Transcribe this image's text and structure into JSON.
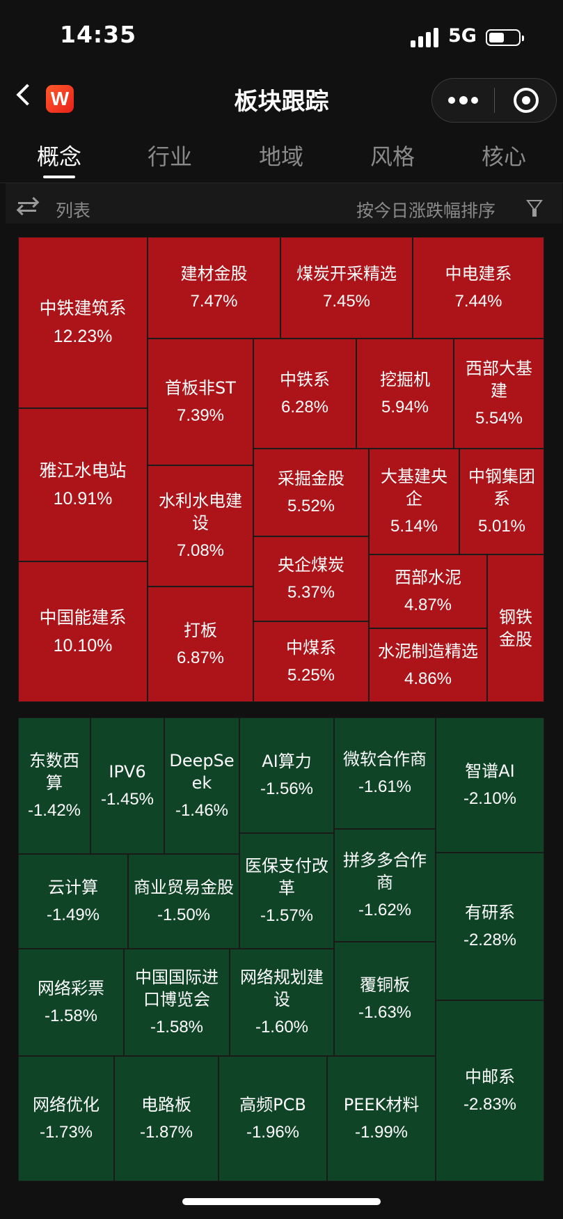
{
  "status_bar": {
    "time": "14:35",
    "network": "5G",
    "battery_level": 0.5
  },
  "header": {
    "title": "板块跟踪",
    "logo_letter": "W"
  },
  "tabs": [
    "概念",
    "行业",
    "地域",
    "风格",
    "核心"
  ],
  "active_tab_index": 0,
  "list_bar": {
    "list_label": "列表",
    "sort_label": "按今日涨跌幅排序"
  },
  "colors": {
    "up": "#ad1419",
    "down": "#0f4427",
    "background": "#111111"
  },
  "treemap_up": [
    {
      "name": "中铁建筑系",
      "change": "12.23%"
    },
    {
      "name": "建材金股",
      "change": "7.47%"
    },
    {
      "name": "煤炭开采精选",
      "change": "7.45%"
    },
    {
      "name": "中电建系",
      "change": "7.44%"
    },
    {
      "name": "首板非ST",
      "change": "7.39%"
    },
    {
      "name": "中铁系",
      "change": "6.28%"
    },
    {
      "name": "挖掘机",
      "change": "5.94%"
    },
    {
      "name": "西部大基建",
      "change": "5.54%"
    },
    {
      "name": "雅江水电站",
      "change": "10.91%"
    },
    {
      "name": "水利水电建设",
      "change": "7.08%"
    },
    {
      "name": "采掘金股",
      "change": "5.52%"
    },
    {
      "name": "大基建央企",
      "change": "5.14%"
    },
    {
      "name": "中钢集团系",
      "change": "5.01%"
    },
    {
      "name": "央企煤炭",
      "change": "5.37%"
    },
    {
      "name": "西部水泥",
      "change": "4.87%"
    },
    {
      "name": "钢铁金股",
      "change": ""
    },
    {
      "name": "中国能建系",
      "change": "10.10%"
    },
    {
      "name": "打板",
      "change": "6.87%"
    },
    {
      "name": "中煤系",
      "change": "5.25%"
    },
    {
      "name": "水泥制造精选",
      "change": "4.86%"
    }
  ],
  "treemap_down": [
    {
      "name": "东数西算",
      "change": "-1.42%"
    },
    {
      "name": "IPV6",
      "change": "-1.45%"
    },
    {
      "name": "DeepSeek",
      "change": "-1.46%"
    },
    {
      "name": "AI算力",
      "change": "-1.56%"
    },
    {
      "name": "微软合作商",
      "change": "-1.61%"
    },
    {
      "name": "智谱AI",
      "change": "-2.10%"
    },
    {
      "name": "云计算",
      "change": "-1.49%"
    },
    {
      "name": "商业贸易金股",
      "change": "-1.50%"
    },
    {
      "name": "医保支付改革",
      "change": "-1.57%"
    },
    {
      "name": "拼多多合作商",
      "change": "-1.62%"
    },
    {
      "name": "有研系",
      "change": "-2.28%"
    },
    {
      "name": "网络彩票",
      "change": "-1.58%"
    },
    {
      "name": "中国国际进口博览会",
      "change": "-1.58%"
    },
    {
      "name": "网络规划建设",
      "change": "-1.60%"
    },
    {
      "name": "覆铜板",
      "change": "-1.63%"
    },
    {
      "name": "网络优化",
      "change": "-1.73%"
    },
    {
      "name": "电路板",
      "change": "-1.87%"
    },
    {
      "name": "高频PCB",
      "change": "-1.96%"
    },
    {
      "name": "PEEK材料",
      "change": "-1.99%"
    },
    {
      "name": "中邮系",
      "change": "-2.83%"
    }
  ]
}
